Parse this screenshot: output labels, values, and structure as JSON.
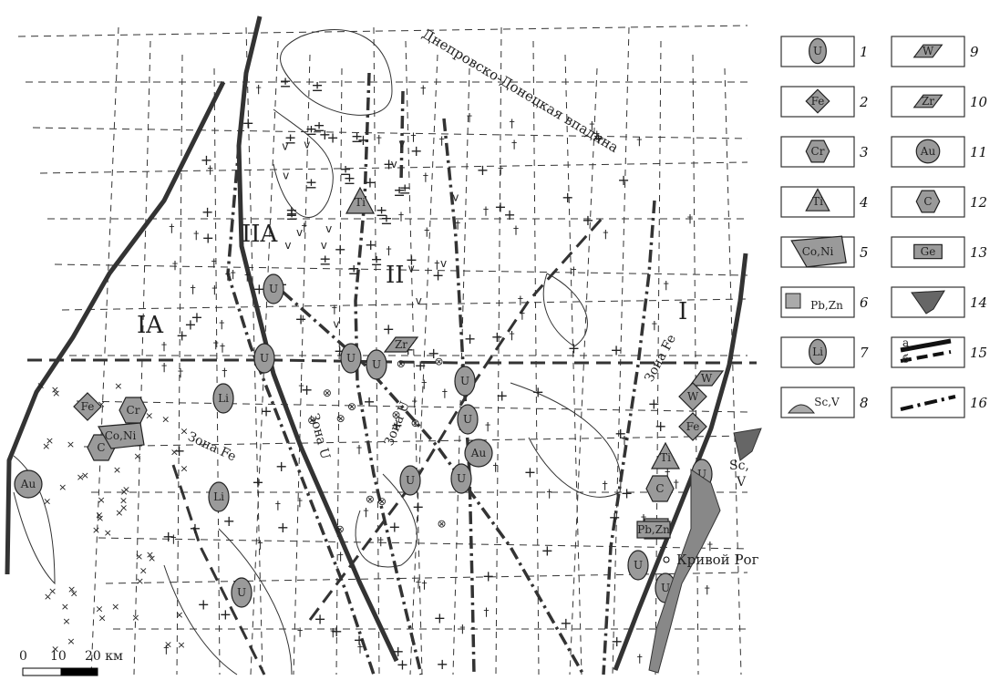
{
  "map": {
    "depression_label": "Днепровско-Донецкая впадина",
    "city_label": "Кривой Рог",
    "sc_v_label": "Sc,",
    "sc_v_label2": "V",
    "block_labels": [
      "IA",
      "IIA",
      "II",
      "I"
    ],
    "zone_labels": [
      "Зона Fe",
      "Зона U",
      "Зона U",
      "Зона Fe"
    ],
    "ore_symbols": [
      {
        "kind": "oval",
        "text": "U"
      },
      {
        "kind": "oval",
        "text": "U"
      },
      {
        "kind": "oval",
        "text": "U"
      },
      {
        "kind": "oval",
        "text": "U"
      },
      {
        "kind": "oval",
        "text": "U"
      },
      {
        "kind": "oval",
        "text": "U"
      },
      {
        "kind": "oval",
        "text": "U"
      },
      {
        "kind": "oval",
        "text": "U"
      },
      {
        "kind": "oval",
        "text": "U"
      },
      {
        "kind": "oval",
        "text": "U"
      },
      {
        "kind": "oval",
        "text": "U"
      },
      {
        "kind": "oval",
        "text": "U"
      },
      {
        "kind": "oval",
        "text": "Li"
      },
      {
        "kind": "oval",
        "text": "Li"
      },
      {
        "kind": "diamond",
        "text": "Fe"
      },
      {
        "kind": "diamond",
        "text": "Fe"
      },
      {
        "kind": "circle",
        "text": "Au"
      },
      {
        "kind": "circle",
        "text": "Au"
      },
      {
        "kind": "hex",
        "text": "C"
      },
      {
        "kind": "hex",
        "text": "C"
      },
      {
        "kind": "hex",
        "text": "Cr"
      },
      {
        "kind": "poly",
        "text": "Co,Ni"
      },
      {
        "kind": "triangle",
        "text": "Ti"
      },
      {
        "kind": "triangle",
        "text": "Ti"
      },
      {
        "kind": "para",
        "text": "Zr"
      },
      {
        "kind": "para",
        "text": "W"
      },
      {
        "kind": "square",
        "text": "Ge"
      },
      {
        "kind": "rect",
        "text": "Pb,Zn"
      },
      {
        "kind": "diamond",
        "text": "W"
      }
    ]
  },
  "scale_bar": {
    "labels": [
      "0",
      "10",
      "20 км"
    ]
  },
  "legend": [
    {
      "num": "1",
      "symbol": "oval",
      "text": "U"
    },
    {
      "num": "2",
      "symbol": "diamond",
      "text": "Fe"
    },
    {
      "num": "3",
      "symbol": "hex",
      "text": "Cr"
    },
    {
      "num": "4",
      "symbol": "triangle",
      "text": "Ti"
    },
    {
      "num": "5",
      "symbol": "poly",
      "text": "Co,Ni"
    },
    {
      "num": "6",
      "symbol": "square-text",
      "text": "Pb,Zn"
    },
    {
      "num": "7",
      "symbol": "oval",
      "text": "Li"
    },
    {
      "num": "8",
      "symbol": "half",
      "text": "Sc,V"
    },
    {
      "num": "9",
      "symbol": "para",
      "text": "W"
    },
    {
      "num": "10",
      "symbol": "para",
      "text": "Zr"
    },
    {
      "num": "11",
      "symbol": "circle",
      "text": "Au"
    },
    {
      "num": "12",
      "symbol": "hex",
      "text": "C"
    },
    {
      "num": "13",
      "symbol": "rect",
      "text": "Ge"
    },
    {
      "num": "14",
      "symbol": "blob",
      "text": ""
    },
    {
      "num": "15",
      "symbol": "faults",
      "text": "а",
      "text2": "б"
    },
    {
      "num": "16",
      "symbol": "dashdot",
      "text": ""
    }
  ]
}
